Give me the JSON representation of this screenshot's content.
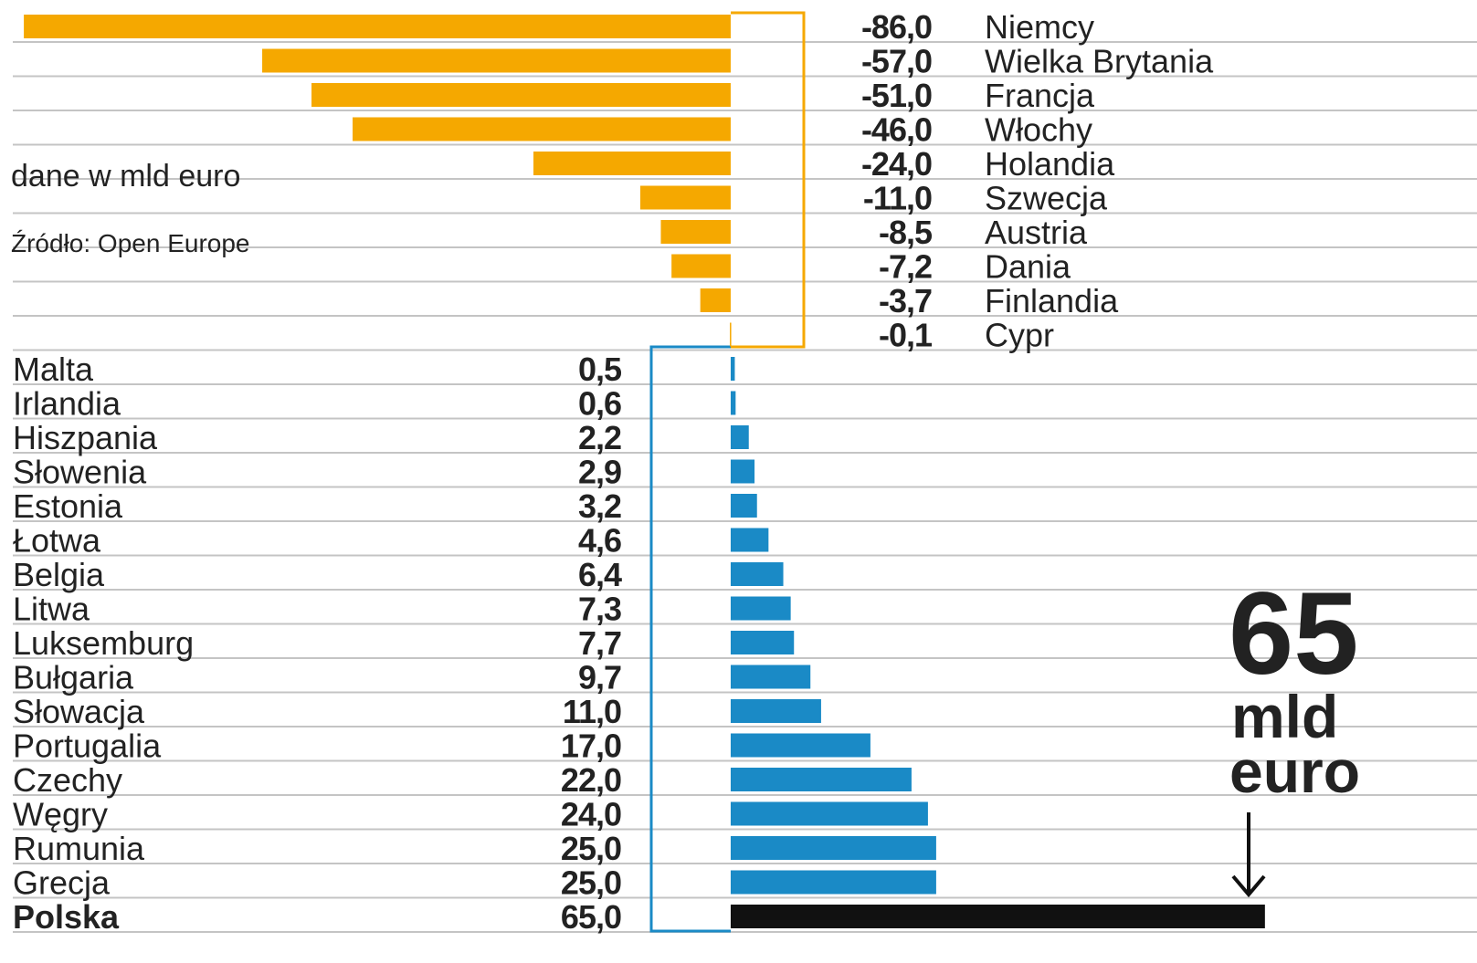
{
  "chart_data": {
    "type": "diverging-bar",
    "categories": [
      "Niemcy",
      "Wielka Brytania",
      "Francja",
      "Włochy",
      "Holandia",
      "Szwecja",
      "Austria",
      "Dania",
      "Finlandia",
      "Cypr",
      "Malta",
      "Irlandia",
      "Hiszpania",
      "Słowenia",
      "Estonia",
      "Łotwa",
      "Belgia",
      "Litwa",
      "Luksemburg",
      "Bułgaria",
      "Słowacja",
      "Portugalia",
      "Czechy",
      "Węgry",
      "Rumunia",
      "Grecja",
      "Polska"
    ],
    "values": [
      -86.0,
      -57.0,
      -51.0,
      -46.0,
      -24.0,
      -11.0,
      -8.5,
      -7.2,
      -3.7,
      -0.1,
      0.5,
      0.6,
      2.2,
      2.9,
      3.2,
      4.6,
      6.4,
      7.3,
      7.7,
      9.7,
      11.0,
      17.0,
      22.0,
      24.0,
      25.0,
      25.0,
      65.0
    ],
    "value_labels": [
      "-86,0",
      "-57,0",
      "-51,0",
      "-46,0",
      "-24,0",
      "-11,0",
      "-8,5",
      "-7,2",
      "-3,7",
      "-0,1",
      "0,5",
      "0,6",
      "2,2",
      "2,9",
      "3,2",
      "4,6",
      "6,4",
      "7,3",
      "7,7",
      "9,7",
      "11,0",
      "17,0",
      "22,0",
      "24,0",
      "25,0",
      "25,0",
      "65,0"
    ],
    "colors": [
      "#f5a800",
      "#f5a800",
      "#f5a800",
      "#f5a800",
      "#f5a800",
      "#f5a800",
      "#f5a800",
      "#f5a800",
      "#f5a800",
      "#f5a800",
      "#1a8ac6",
      "#1a8ac6",
      "#1a8ac6",
      "#1a8ac6",
      "#1a8ac6",
      "#1a8ac6",
      "#1a8ac6",
      "#1a8ac6",
      "#1a8ac6",
      "#1a8ac6",
      "#1a8ac6",
      "#1a8ac6",
      "#1a8ac6",
      "#1a8ac6",
      "#1a8ac6",
      "#1a8ac6",
      "#111111"
    ],
    "highlight_color": "#111111",
    "xlim": [
      -88.9,
      90.8
    ],
    "annotations": [
      "dane w mld euro",
      "Źródło: Open Europe",
      "65",
      "mld",
      "euro"
    ]
  }
}
